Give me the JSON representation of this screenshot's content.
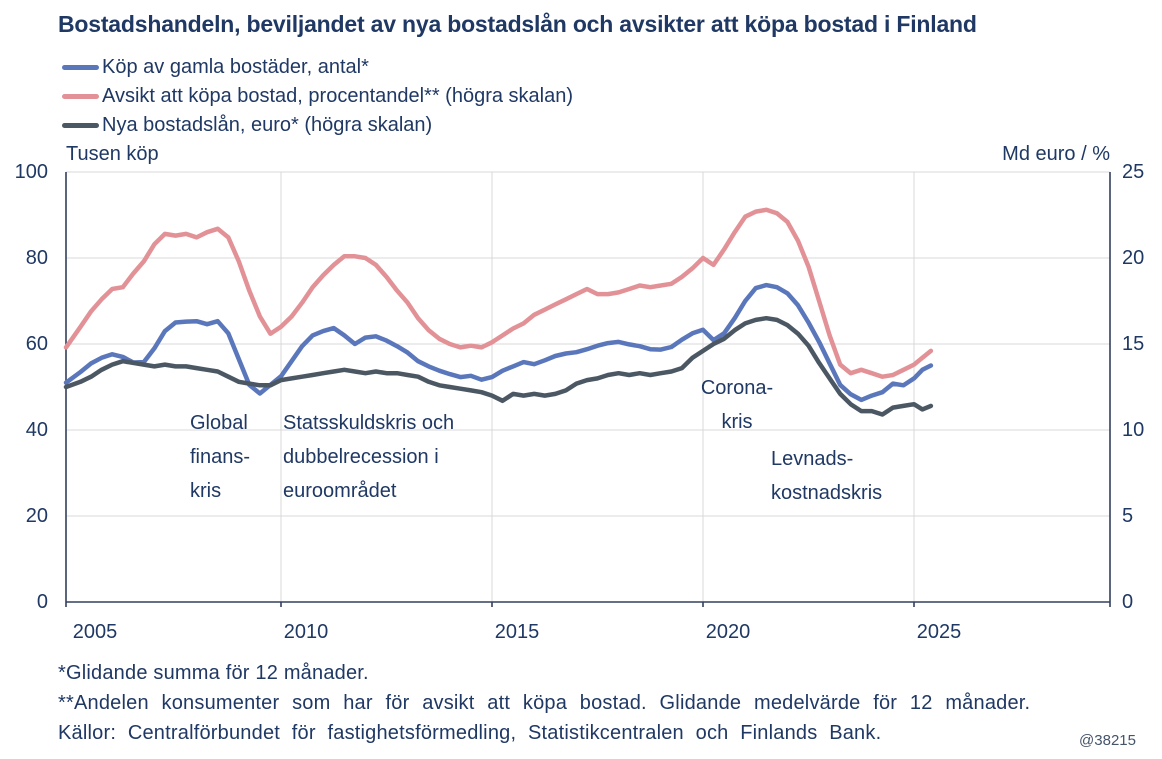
{
  "title": "Bostadshandeln, beviljandet av nya bostadslån och avsikter att köpa bostad i Finland",
  "legend": [
    {
      "label": "Köp av gamla bostäder, antal*",
      "color": "#5B77BB"
    },
    {
      "label": "Avsikt att köpa bostad, procentandel** (högra skalan)",
      "color": "#E29296"
    },
    {
      "label": "Nya bostadslån, euro* (högra skalan)",
      "color": "#4B5864"
    }
  ],
  "axes": {
    "left_title": "Tusen köp",
    "right_title": "Md euro / %",
    "left_ticks": [
      "100",
      "80",
      "60",
      "40",
      "20",
      "0"
    ],
    "right_ticks": [
      "25",
      "20",
      "15",
      "10",
      "5",
      "0"
    ],
    "x_ticks": [
      "2005",
      "2010",
      "2015",
      "2020",
      "2025"
    ]
  },
  "annotations": [
    {
      "lines": [
        "Global",
        "finans-",
        "kris"
      ]
    },
    {
      "lines": [
        "Statsskuldskris och",
        "dubbelrecession i",
        "euroområdet"
      ]
    },
    {
      "lines": [
        "Corona-",
        "kris"
      ]
    },
    {
      "lines": [
        "Levnads-",
        "kostnadskris"
      ]
    }
  ],
  "footnotes": [
    "*Glidande summa för 12 månader.",
    "**Andelen konsumenter som har för avsikt att köpa bostad. Glidande medelvärde för 12 månader.",
    "Källor: Centralförbundet för fastighetsförmedling, Statistikcentralen och Finlands Bank."
  ],
  "watermark": "@38215",
  "colors": {
    "text": "#1F3864",
    "grid": "#D9D9D9",
    "axis": "#32405E"
  },
  "chart_data": {
    "type": "line",
    "title": "Bostadshandeln, beviljandet av nya bostadslån och avsikter att köpa bostad i Finland",
    "xlabel": "",
    "ylabel_left": "Tusen köp",
    "ylabel_right": "Md euro / %",
    "left_ylim": [
      0,
      100
    ],
    "right_ylim": [
      0,
      25
    ],
    "x_range_visible": [
      2004.9,
      2029.6
    ],
    "x_gridline_years": [
      2010,
      2015,
      2020,
      2025
    ],
    "x_tick_years": [
      2005,
      2010,
      2015,
      2020,
      2025
    ],
    "grid": true,
    "legend_position": "top-left",
    "x": [
      2005.0,
      2005.25,
      2005.5,
      2005.75,
      2006.0,
      2006.25,
      2006.5,
      2006.75,
      2007.0,
      2007.25,
      2007.5,
      2007.75,
      2008.0,
      2008.25,
      2008.5,
      2008.75,
      2009.0,
      2009.25,
      2009.5,
      2009.75,
      2010.0,
      2010.25,
      2010.5,
      2010.75,
      2011.0,
      2011.25,
      2011.5,
      2011.75,
      2012.0,
      2012.25,
      2012.5,
      2012.75,
      2013.0,
      2013.25,
      2013.5,
      2013.75,
      2014.0,
      2014.25,
      2014.5,
      2014.75,
      2015.0,
      2015.25,
      2015.5,
      2015.75,
      2016.0,
      2016.25,
      2016.5,
      2016.75,
      2017.0,
      2017.25,
      2017.5,
      2017.75,
      2018.0,
      2018.25,
      2018.5,
      2018.75,
      2019.0,
      2019.25,
      2019.5,
      2019.75,
      2020.0,
      2020.25,
      2020.5,
      2020.75,
      2021.0,
      2021.25,
      2021.5,
      2021.75,
      2022.0,
      2022.25,
      2022.5,
      2022.75,
      2023.0,
      2023.25,
      2023.5,
      2023.75,
      2024.0,
      2024.25,
      2024.5,
      2024.75,
      2025.0,
      2025.2,
      2025.4
    ],
    "series": [
      {
        "name": "Köp av gamla bostäder, antal*",
        "axis": "left",
        "unit": "tusen köp",
        "color": "#5B77BB",
        "values": [
          51.0,
          53.5,
          55.5,
          56.8,
          57.6,
          57.0,
          55.7,
          55.8,
          59.0,
          63.0,
          65.0,
          65.2,
          65.3,
          64.6,
          65.3,
          62.5,
          56.5,
          50.5,
          48.5,
          50.5,
          52.5,
          56.0,
          59.5,
          62.0,
          63.0,
          63.7,
          62.0,
          60.0,
          61.5,
          61.8,
          60.8,
          59.5,
          58.0,
          56.0,
          54.8,
          53.8,
          53.0,
          52.3,
          52.6,
          51.7,
          52.3,
          53.8,
          54.8,
          55.8,
          55.3,
          56.2,
          57.2,
          57.8,
          58.1,
          58.8,
          59.6,
          60.2,
          60.5,
          59.9,
          59.5,
          58.8,
          58.7,
          59.3,
          61.0,
          62.5,
          63.3,
          60.9,
          62.5,
          66.0,
          70.0,
          73.0,
          73.7,
          73.2,
          71.8,
          69.0,
          65.0,
          60.5,
          55.5,
          50.5,
          48.3,
          47.0,
          48.0,
          48.8,
          50.8,
          50.4,
          52.0,
          54.0,
          55.0
        ]
      },
      {
        "name": "Avsikt att köpa bostad, procentandel**",
        "axis": "right",
        "unit": "%",
        "color": "#E29296",
        "values": [
          14.8,
          16.0,
          16.9,
          17.6,
          18.2,
          18.3,
          19.1,
          19.8,
          20.8,
          21.4,
          21.3,
          21.4,
          21.2,
          21.5,
          21.7,
          21.2,
          19.8,
          18.1,
          16.6,
          15.6,
          16.0,
          16.6,
          17.4,
          18.3,
          19.0,
          19.6,
          20.1,
          20.1,
          20.0,
          19.6,
          18.9,
          18.1,
          17.4,
          16.5,
          15.8,
          15.3,
          15.0,
          14.8,
          14.9,
          14.8,
          15.1,
          15.5,
          15.9,
          16.2,
          16.7,
          17.0,
          17.3,
          17.6,
          17.9,
          18.2,
          17.9,
          17.9,
          18.0,
          18.2,
          18.4,
          18.3,
          18.4,
          18.5,
          18.9,
          19.4,
          20.0,
          19.6,
          20.5,
          21.5,
          22.4,
          22.7,
          22.8,
          22.6,
          22.1,
          21.0,
          19.5,
          17.5,
          15.5,
          13.8,
          13.3,
          13.5,
          13.3,
          13.1,
          13.2,
          13.5,
          13.8,
          14.2,
          14.6
        ]
      },
      {
        "name": "Nya bostadslån, euro*",
        "axis": "right",
        "unit": "Md euro",
        "color": "#4B5864",
        "values": [
          12.5,
          12.8,
          13.1,
          13.5,
          13.8,
          14.0,
          13.9,
          13.8,
          13.7,
          13.8,
          13.7,
          13.7,
          13.6,
          13.5,
          13.4,
          13.1,
          12.8,
          12.7,
          12.6,
          12.6,
          12.9,
          13.0,
          13.1,
          13.2,
          13.3,
          13.4,
          13.5,
          13.4,
          13.3,
          13.4,
          13.3,
          13.3,
          13.2,
          13.1,
          12.8,
          12.6,
          12.5,
          12.4,
          12.3,
          12.2,
          12.0,
          11.7,
          12.1,
          12.0,
          12.1,
          12.0,
          12.1,
          12.3,
          12.7,
          12.9,
          13.0,
          13.2,
          13.3,
          13.2,
          13.3,
          13.2,
          13.3,
          13.4,
          13.6,
          14.2,
          14.6,
          15.0,
          15.3,
          15.8,
          16.2,
          16.4,
          16.5,
          16.4,
          16.1,
          15.6,
          14.9,
          13.9,
          13.0,
          12.1,
          11.5,
          11.1,
          11.1,
          10.9,
          11.3,
          11.4,
          11.5,
          11.2,
          11.4
        ]
      }
    ]
  }
}
